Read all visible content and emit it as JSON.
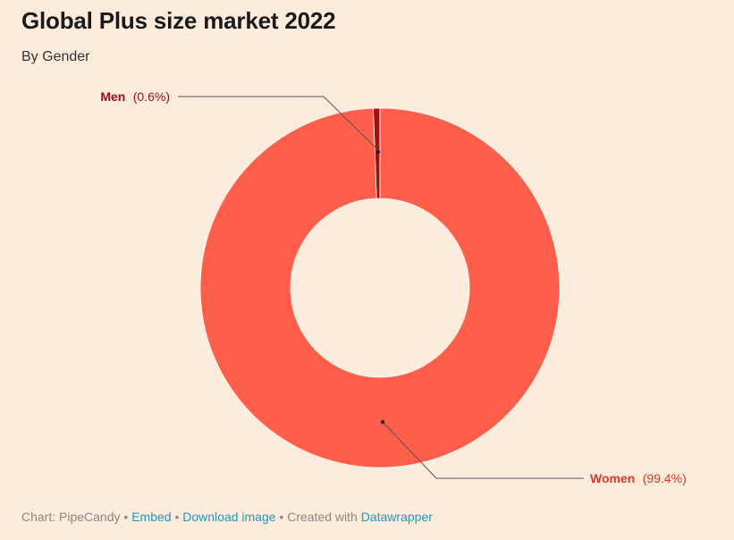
{
  "header": {
    "title": "Global Plus size market 2022",
    "subtitle": "By Gender"
  },
  "chart_data": {
    "type": "pie",
    "variant": "donut",
    "title": "Global Plus size market 2022",
    "subtitle": "By Gender",
    "slices": [
      {
        "name": "Men",
        "value": 0.6,
        "pct_label": "(0.6%)",
        "color": "#a30f0f"
      },
      {
        "name": "Women",
        "value": 99.4,
        "pct_label": "(99.4%)",
        "color": "#ff5f4a"
      }
    ]
  },
  "footer": {
    "source_prefix": "Chart: PipeCandy",
    "separator": " • ",
    "embed_label": "Embed",
    "download_label": "Download image",
    "created_with": "Created with",
    "datawrapper_label": "Datawrapper"
  },
  "colors": {
    "background": "#fdebdc",
    "link": "#1a9bc9",
    "men_label": "#9b1010",
    "women_label": "#d83a2a"
  }
}
